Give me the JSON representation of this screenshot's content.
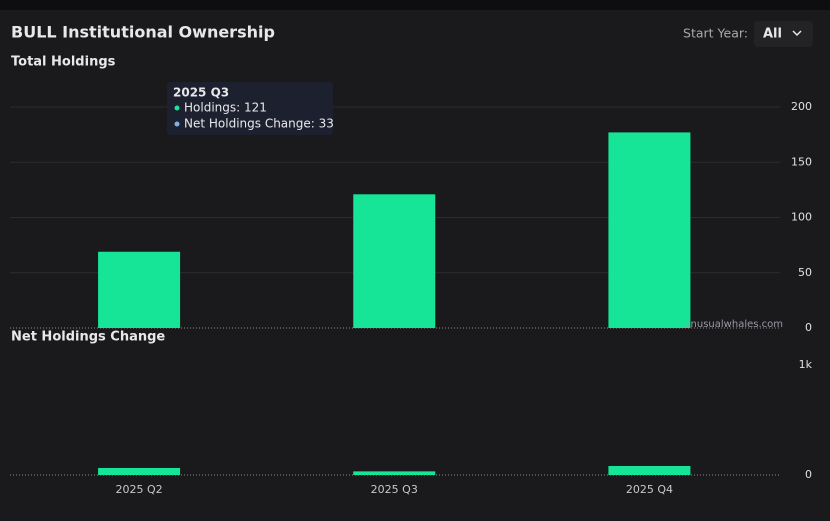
{
  "header": {
    "title": "BULL Institutional Ownership",
    "start_year_label": "Start Year:",
    "start_year_value": "All",
    "watermark": "unusualwhales.com"
  },
  "chart_data": [
    {
      "type": "bar",
      "title": "Total Holdings",
      "values": [
        69,
        121,
        177
      ],
      "color": "#16e597",
      "ylim": [
        0,
        200
      ],
      "yticks": [
        0,
        50,
        100,
        150,
        200
      ],
      "grid": true,
      "tooltip": {
        "title": "2025 Q3",
        "lines": [
          "Holdings: 121",
          "Net Holdings Change: 33"
        ],
        "colors": [
          "#16e597",
          "#7fb0e8"
        ]
      }
    },
    {
      "type": "bar",
      "title": "Net Holdings Change",
      "categories": [
        "2025 Q2",
        "2025 Q3",
        "2025 Q4"
      ],
      "values": [
        64,
        33,
        82
      ],
      "color": "#16e597",
      "ylim": [
        0,
        1000
      ],
      "yticks": [
        0,
        {
          "value": 1000,
          "label": "1k"
        }
      ],
      "grid": false
    }
  ]
}
